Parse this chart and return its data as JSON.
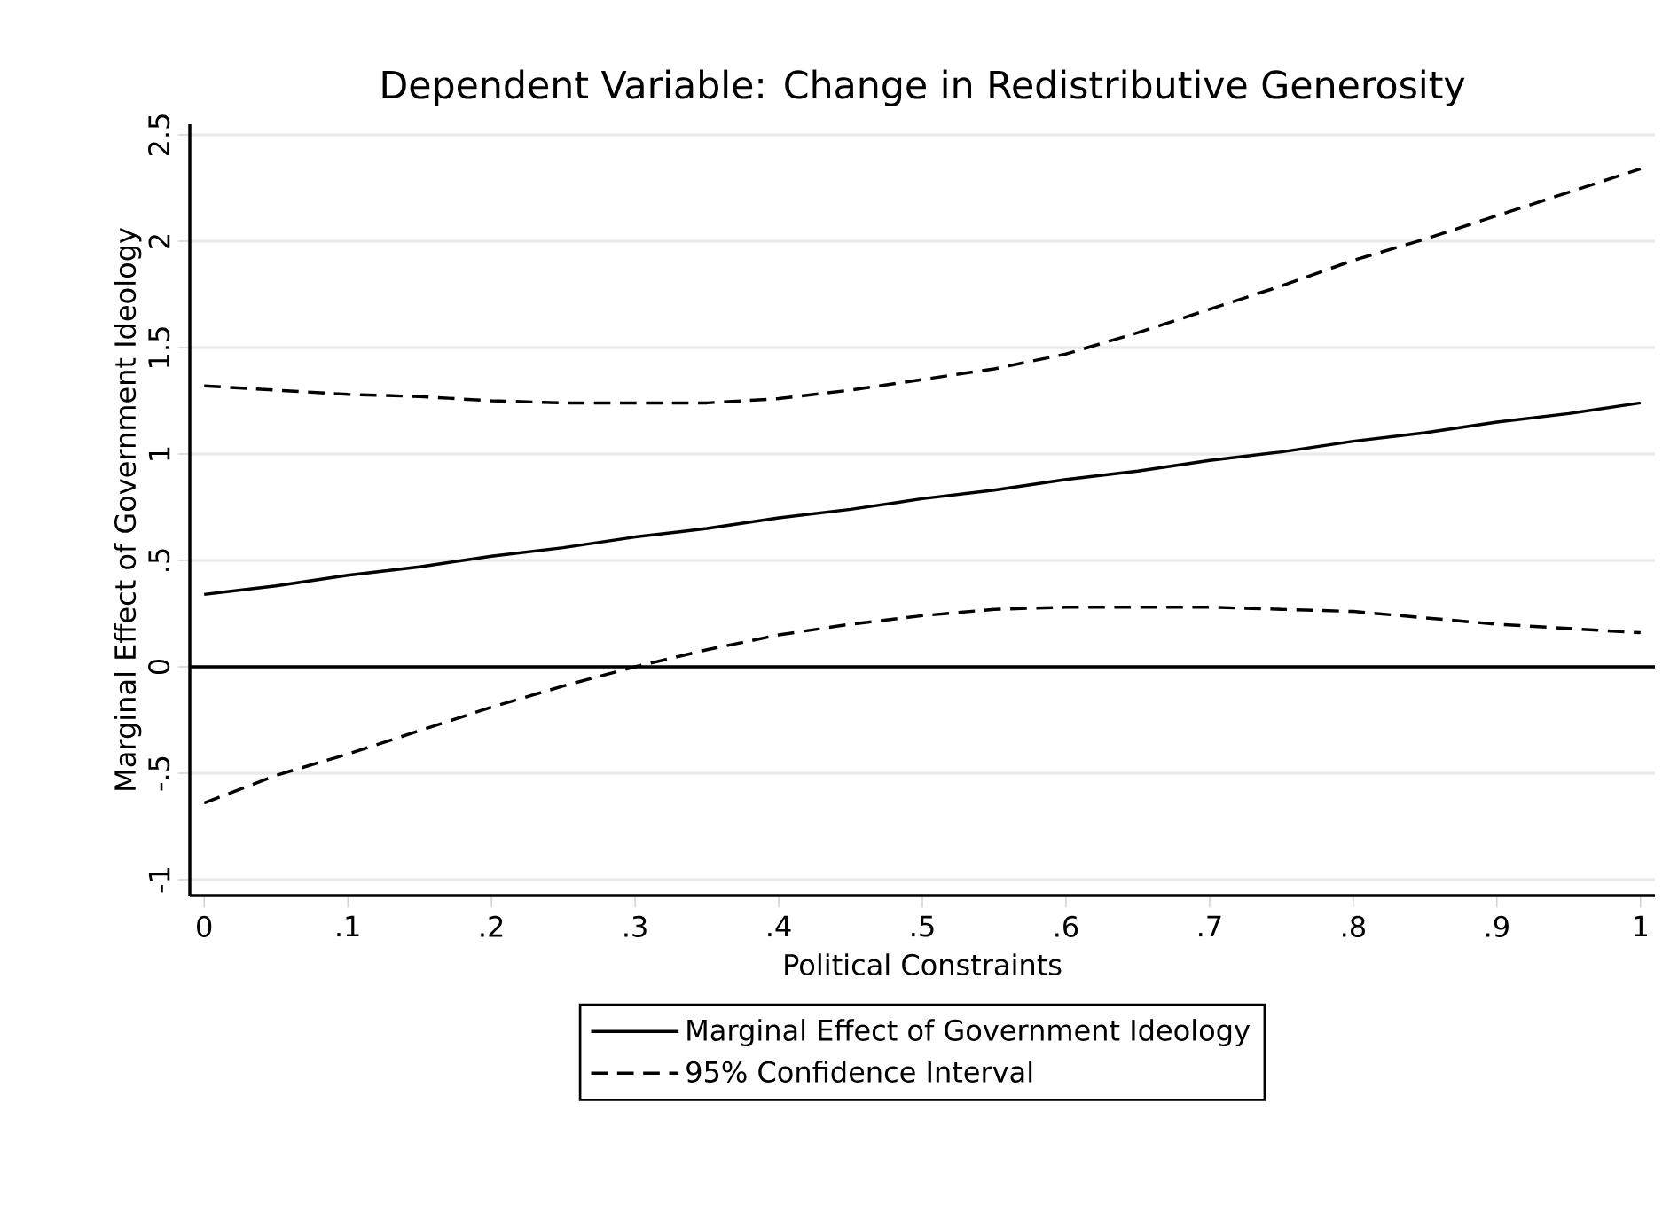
{
  "chart_data": {
    "type": "line",
    "title": "Dependent Variable: Change in Redistributive Generosity",
    "xlabel": "Political Constraints",
    "ylabel": "Marginal Effect of Government Ideology",
    "x": [
      0,
      0.05,
      0.1,
      0.15,
      0.2,
      0.25,
      0.3,
      0.35,
      0.4,
      0.45,
      0.5,
      0.55,
      0.6,
      0.65,
      0.7,
      0.75,
      0.8,
      0.85,
      0.9,
      0.95,
      1
    ],
    "series": [
      {
        "name": "Marginal Effect of Government Ideology",
        "color": "#000000",
        "line_style": "solid",
        "values": [
          0.34,
          0.38,
          0.43,
          0.47,
          0.52,
          0.56,
          0.61,
          0.65,
          0.7,
          0.74,
          0.79,
          0.83,
          0.88,
          0.92,
          0.97,
          1.01,
          1.06,
          1.1,
          1.15,
          1.19,
          1.24
        ]
      },
      {
        "name": "95% Confidence Interval",
        "color": "#000000",
        "line_style": "dashed",
        "values": [
          -0.64,
          -0.51,
          -0.41,
          -0.3,
          -0.19,
          -0.09,
          0.0,
          0.08,
          0.15,
          0.2,
          0.24,
          0.27,
          0.28,
          0.28,
          0.28,
          0.27,
          0.26,
          0.23,
          0.2,
          0.18,
          0.16
        ]
      },
      {
        "color": "#000000",
        "line_style": "dashed",
        "values": [
          1.32,
          1.3,
          1.28,
          1.27,
          1.25,
          1.24,
          1.24,
          1.24,
          1.26,
          1.3,
          1.35,
          1.4,
          1.47,
          1.57,
          1.68,
          1.79,
          1.91,
          2.01,
          2.12,
          2.23,
          2.34
        ]
      }
    ],
    "xlim": [
      -0.01,
      1.01
    ],
    "ylim": [
      -1.075,
      2.55
    ],
    "xticks": [
      0,
      {
        "value": 0.1,
        "label": ".1"
      },
      {
        "value": 0.2,
        "label": ".2"
      },
      {
        "value": 0.3,
        "label": ".3"
      },
      {
        "value": 0.4,
        "label": ".4"
      },
      {
        "value": 0.5,
        "label": ".5"
      },
      {
        "value": 0.6,
        "label": ".6"
      },
      {
        "value": 0.7,
        "label": ".7"
      },
      {
        "value": 0.8,
        "label": ".8"
      },
      {
        "value": 0.9,
        "label": ".9"
      },
      1
    ],
    "yticks": [
      -1,
      {
        "value": -0.5,
        "label": "-.5"
      },
      0,
      {
        "value": 0.5,
        "label": ".5"
      },
      1,
      1.5,
      2,
      2.5
    ],
    "ref_lines": [
      {
        "axis": "y",
        "value": 0,
        "color": "#000000"
      }
    ],
    "grid": "y",
    "legend": "bottom",
    "marker": "none"
  }
}
